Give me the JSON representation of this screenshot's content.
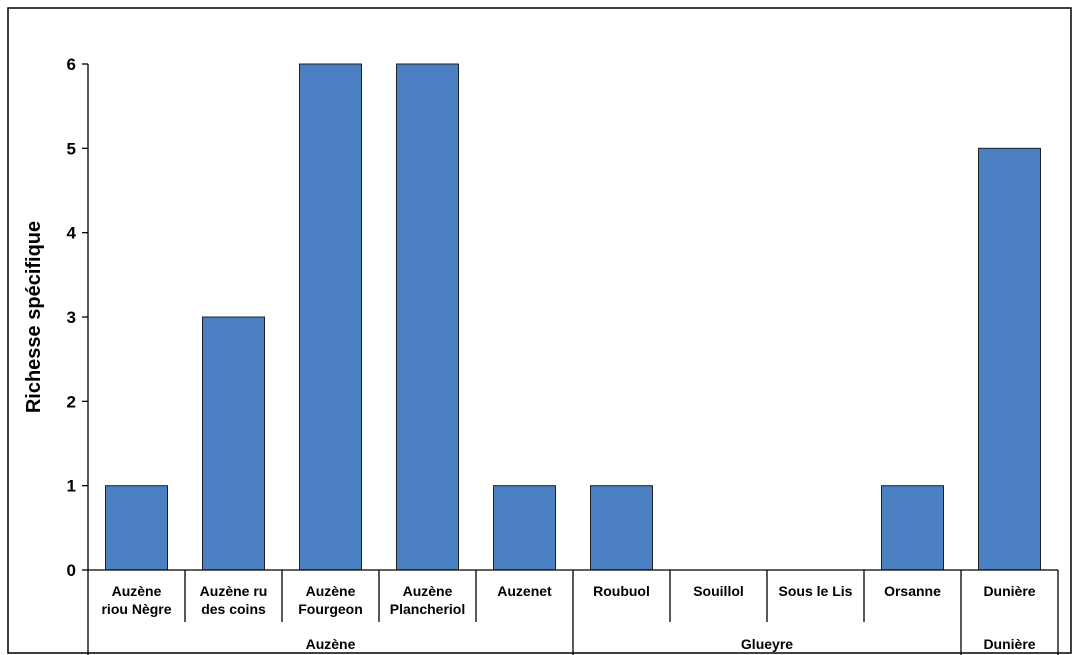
{
  "chart_data": {
    "type": "bar",
    "title": "",
    "xlabel": "",
    "ylabel": "Richesse spécifique",
    "ylim": [
      0,
      6
    ],
    "yticks": [
      "0",
      "1",
      "2",
      "3",
      "4",
      "5",
      "6"
    ],
    "grid": false,
    "bar_color": "#4a7fc1",
    "categories": [
      [
        "Auzène",
        "riou Nègre"
      ],
      [
        "Auzène ru",
        "des coins"
      ],
      [
        "Auzène",
        "Fourgeon"
      ],
      [
        "Auzène",
        "Plancheriol"
      ],
      [
        "Auzenet"
      ],
      [
        "Roubuol"
      ],
      [
        "Souillol"
      ],
      [
        "Sous le Lis"
      ],
      [
        "Orsanne"
      ],
      [
        "Dunière"
      ]
    ],
    "values": [
      1,
      3,
      6,
      6,
      1,
      1,
      0,
      0,
      1,
      5
    ],
    "groups": [
      {
        "label": "Auzène",
        "start": 0,
        "end": 4
      },
      {
        "label": "Glueyre",
        "start": 5,
        "end": 8
      },
      {
        "label": "Dunière",
        "start": 9,
        "end": 9
      }
    ]
  }
}
